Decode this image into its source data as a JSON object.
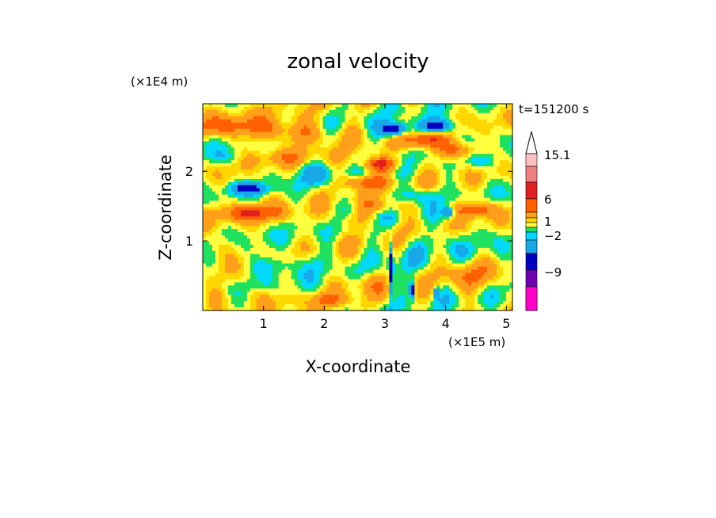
{
  "chart_data": {
    "type": "heatmap",
    "title": "zonal velocity",
    "xlabel": "X-coordinate",
    "ylabel": "Z-coordinate",
    "x_unit": "(×1E5 m)",
    "y_unit": "(×1E4 m)",
    "time_label": "t=151200 s",
    "xlim": [
      0,
      5.1
    ],
    "ylim": [
      0,
      2.97
    ],
    "x_ticks": [
      1,
      2,
      3,
      4,
      5
    ],
    "x_tick_labels": [
      "1",
      "2",
      "3",
      "4",
      "5"
    ],
    "y_ticks": [
      1,
      2
    ],
    "y_tick_labels": [
      "1",
      "2"
    ],
    "colorbar": {
      "levels": [
        15.1,
        12,
        9,
        6,
        4,
        2,
        1,
        0,
        -1,
        -2,
        -5,
        -9,
        -12,
        -15
      ],
      "labeled": [
        {
          "value": 15.1,
          "label": "15.1"
        },
        {
          "value": 6,
          "label": "6"
        },
        {
          "value": 1,
          "label": "1"
        },
        {
          "value": -2,
          "label": "−2"
        },
        {
          "value": -9,
          "label": "−9"
        }
      ],
      "colors": [
        "#ffc0c0",
        "#f08080",
        "#e02020",
        "#ff6000",
        "#ff9f1a",
        "#ffd700",
        "#ffff40",
        "#20e060",
        "#00d8ff",
        "#18a8e8",
        "#0000c0",
        "#7000b0",
        "#c000c0",
        "#ff00c8"
      ]
    },
    "field": {
      "description_free": true,
      "background": 0.5,
      "features": [
        {
          "x": 0.5,
          "z": 2.65,
          "v": 3.5,
          "sx": 0.9,
          "sz": 0.16
        },
        {
          "x": 1.5,
          "z": 2.55,
          "v": 3,
          "sx": 0.8,
          "sz": 0.15
        },
        {
          "x": 0.75,
          "z": 1.75,
          "v": -6,
          "sx": 0.3,
          "sz": 0.08
        },
        {
          "x": 0.8,
          "z": 1.4,
          "v": 5,
          "sx": 0.55,
          "sz": 0.12
        },
        {
          "x": 1.9,
          "z": 1.95,
          "v": -2.5,
          "sx": 0.35,
          "sz": 0.15
        },
        {
          "x": 1.3,
          "z": 2.2,
          "v": 2,
          "sx": 0.6,
          "sz": 0.12
        },
        {
          "x": 2.9,
          "z": 2.1,
          "v": 6,
          "sx": 0.35,
          "sz": 0.1
        },
        {
          "x": 2.65,
          "z": 1.85,
          "v": 5,
          "sx": 0.35,
          "sz": 0.1
        },
        {
          "x": 3.15,
          "z": 2.6,
          "v": -9,
          "sx": 0.22,
          "sz": 0.1
        },
        {
          "x": 3.65,
          "z": 2.45,
          "v": 6,
          "sx": 0.3,
          "sz": 0.12
        },
        {
          "x": 3.85,
          "z": 2.65,
          "v": -9,
          "sx": 0.25,
          "sz": 0.1
        },
        {
          "x": 4.2,
          "z": 2.3,
          "v": 5,
          "sx": 0.35,
          "sz": 0.12
        },
        {
          "x": 4.6,
          "z": 2.15,
          "v": -3,
          "sx": 0.25,
          "sz": 0.12
        },
        {
          "x": 4.5,
          "z": 1.45,
          "v": 5,
          "sx": 0.35,
          "sz": 0.12
        },
        {
          "x": 4.05,
          "z": 1.4,
          "v": -6,
          "sx": 0.1,
          "sz": 0.08
        },
        {
          "x": 3.5,
          "z": 1.65,
          "v": -3,
          "sx": 0.3,
          "sz": 0.12
        },
        {
          "x": 3.0,
          "z": 1.5,
          "v": 3,
          "sx": 0.35,
          "sz": 0.12
        },
        {
          "x": 2.4,
          "z": 1.3,
          "v": 2,
          "sx": 0.3,
          "sz": 0.12
        },
        {
          "x": 1.1,
          "z": 0.65,
          "v": -2.5,
          "sx": 0.4,
          "sz": 0.15
        },
        {
          "x": 0.3,
          "z": 0.9,
          "v": 2,
          "sx": 0.25,
          "sz": 0.15
        },
        {
          "x": 1.8,
          "z": 0.7,
          "v": -1.5,
          "sx": 0.35,
          "sz": 0.15
        },
        {
          "x": 2.6,
          "z": 0.4,
          "v": 2,
          "sx": 0.35,
          "sz": 0.15
        },
        {
          "x": 3.3,
          "z": 0.8,
          "v": -1,
          "sx": 0.3,
          "sz": 0.2
        },
        {
          "x": 3.1,
          "z": 0.6,
          "v": -9,
          "sx": 0.035,
          "sz": 0.35
        },
        {
          "x": 3.45,
          "z": 0.3,
          "v": -9,
          "sx": 0.04,
          "sz": 0.12
        },
        {
          "x": 3.85,
          "z": 0.25,
          "v": -6,
          "sx": 0.04,
          "sz": 0.08
        },
        {
          "x": 4.4,
          "z": 0.5,
          "v": 3,
          "sx": 0.35,
          "sz": 0.2
        },
        {
          "x": 4.0,
          "z": 1.0,
          "v": -1.5,
          "sx": 0.35,
          "sz": 0.2
        },
        {
          "x": 4.9,
          "z": 1.0,
          "v": -1,
          "sx": 0.2,
          "sz": 0.25
        },
        {
          "x": 0.4,
          "z": 2.2,
          "v": -2,
          "sx": 0.3,
          "sz": 0.1
        },
        {
          "x": 0.2,
          "z": 0.2,
          "v": 2,
          "sx": 0.25,
          "sz": 0.15
        },
        {
          "x": 1.0,
          "z": 0.2,
          "v": 1.5,
          "sx": 0.35,
          "sz": 0.12
        },
        {
          "x": 2.1,
          "z": 0.15,
          "v": 3,
          "sx": 0.3,
          "sz": 0.1
        }
      ],
      "wave": {
        "amplitude": 2.2,
        "kx": 4.5,
        "kz": 6.5
      }
    }
  }
}
